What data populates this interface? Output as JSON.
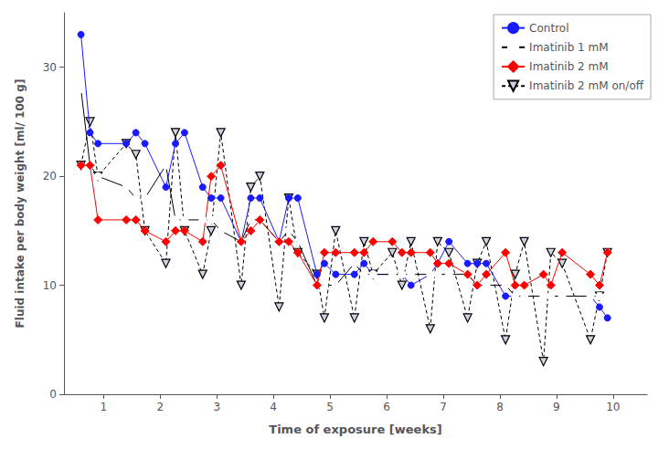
{
  "chart_data": {
    "type": "line",
    "title": "",
    "xlabel": "Time of exposure [weeks]",
    "ylabel": "Fluid intake per body weight [ml/ 100 g]",
    "xlim": [
      0.3,
      10.6
    ],
    "ylim": [
      0,
      35
    ],
    "xticks": [
      1,
      2,
      3,
      4,
      5,
      6,
      7,
      8,
      9,
      10
    ],
    "yticks": [
      0,
      10,
      20,
      30
    ],
    "grid": false,
    "legend": "upper right",
    "x": [
      0.6,
      0.76,
      0.9,
      1.4,
      1.57,
      1.73,
      2.1,
      2.27,
      2.43,
      2.75,
      2.9,
      3.07,
      3.43,
      3.6,
      3.76,
      4.1,
      4.27,
      4.43,
      4.77,
      4.9,
      5.1,
      5.43,
      5.6,
      5.76,
      6.1,
      6.27,
      6.43,
      6.77,
      6.9,
      7.1,
      7.43,
      7.6,
      7.76,
      8.1,
      8.27,
      8.43,
      8.77,
      8.9,
      9.1,
      9.6,
      9.76,
      9.9
    ],
    "series": [
      {
        "name": "Control",
        "color": "#1a1aff",
        "marker": "circle",
        "line_style": "solid",
        "values": [
          33,
          24,
          23,
          23,
          24,
          23,
          19,
          23,
          24,
          19,
          18,
          18,
          14,
          18,
          18,
          14,
          18,
          18,
          11,
          12,
          11,
          11,
          12,
          11,
          11,
          11,
          10,
          11,
          12,
          14,
          12,
          12,
          12,
          9,
          9,
          9,
          9,
          9,
          9,
          9,
          8,
          7
        ]
      },
      {
        "name": "Imatinib 1 mM",
        "color": "#000000",
        "marker": "open_circle",
        "line_style": "solid",
        "values": [
          28,
          21,
          20,
          19,
          18,
          18,
          21,
          16,
          16,
          16,
          16,
          15,
          14,
          16,
          16,
          14,
          15,
          14,
          10,
          10,
          10,
          12,
          11,
          11,
          11,
          11,
          11,
          11,
          11,
          11,
          11,
          10,
          10,
          10,
          9,
          9,
          9,
          9,
          9,
          9,
          9,
          9
        ]
      },
      {
        "name": "Imatinib 2 mM",
        "color": "#ff0000",
        "marker": "diamond",
        "line_style": "solid",
        "values": [
          21,
          21,
          16,
          16,
          16,
          15,
          14,
          15,
          15,
          14,
          20,
          21,
          14,
          15,
          16,
          14,
          14,
          13,
          10,
          13,
          13,
          13,
          13,
          14,
          14,
          13,
          13,
          13,
          12,
          12,
          11,
          10,
          11,
          13,
          10,
          10,
          11,
          10,
          13,
          11,
          10,
          13
        ]
      },
      {
        "name": "Imatinib 2 mM on/off",
        "color": "#000000",
        "marker": "open_triangle_down",
        "line_style": "dashed",
        "values": [
          21,
          25,
          20,
          23,
          22,
          15,
          12,
          24,
          15,
          11,
          15,
          24,
          10,
          19,
          20,
          8,
          18,
          13,
          11,
          7,
          15,
          7,
          14,
          11,
          13,
          10,
          14,
          6,
          14,
          13,
          7,
          12,
          14,
          5,
          11,
          14,
          3,
          13,
          12,
          5,
          9,
          13
        ]
      }
    ]
  }
}
